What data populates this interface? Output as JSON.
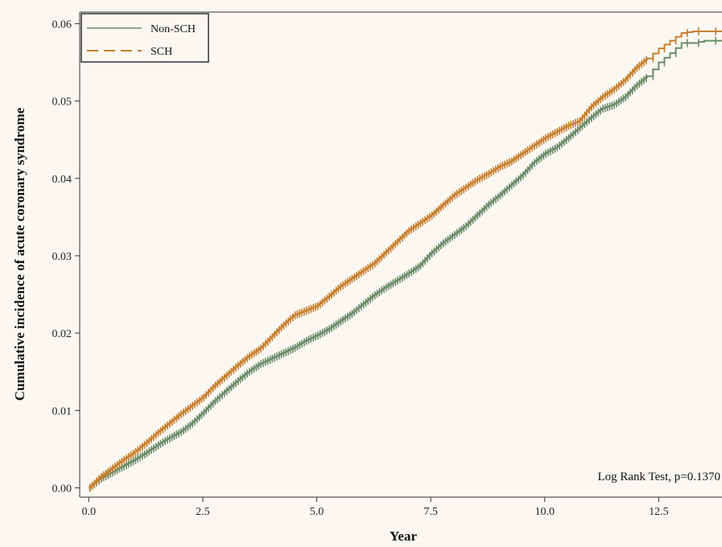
{
  "chart_data": {
    "type": "line",
    "xlabel": "Year",
    "ylabel": "Cumulative incidence of acute coronary syndrome",
    "xlim": [
      -0.2,
      14.1
    ],
    "ylim": [
      -0.0012,
      0.0615
    ],
    "xticks": [
      0.0,
      2.5,
      5.0,
      7.5,
      10.0,
      12.5
    ],
    "xtick_labels": [
      "0.0",
      "2.5",
      "5.0",
      "7.5",
      "10.0",
      "12.5"
    ],
    "yticks": [
      0.0,
      0.01,
      0.02,
      0.03,
      0.04,
      0.05,
      0.06
    ],
    "ytick_labels": [
      "0.00",
      "0.01",
      "0.02",
      "0.03",
      "0.04",
      "0.05",
      "0.06"
    ],
    "legend_position": "top-left",
    "annotation": "Log Rank Test, p=0.1370",
    "grid": false,
    "series": [
      {
        "name": "Non-SCH",
        "color": "#6b8c6b",
        "line_style": "solid",
        "x": [
          0.0,
          0.25,
          0.5,
          0.75,
          1.0,
          1.25,
          1.5,
          1.75,
          2.0,
          2.25,
          2.5,
          2.75,
          3.0,
          3.25,
          3.5,
          3.75,
          4.0,
          4.25,
          4.5,
          4.75,
          5.0,
          5.25,
          5.5,
          5.75,
          6.0,
          6.25,
          6.5,
          6.75,
          7.0,
          7.25,
          7.5,
          7.75,
          8.0,
          8.25,
          8.5,
          8.75,
          9.0,
          9.25,
          9.5,
          9.75,
          10.0,
          10.25,
          10.5,
          10.75,
          11.0,
          11.25,
          11.5,
          11.75,
          12.0,
          12.25,
          12.5,
          12.75,
          13.0,
          13.25,
          13.5,
          14.0
        ],
        "y": [
          0.0,
          0.0012,
          0.002,
          0.0028,
          0.0036,
          0.0045,
          0.0055,
          0.0064,
          0.0072,
          0.0083,
          0.0097,
          0.0112,
          0.0125,
          0.0138,
          0.015,
          0.016,
          0.0167,
          0.0174,
          0.0181,
          0.019,
          0.0197,
          0.0205,
          0.0215,
          0.0225,
          0.0237,
          0.0249,
          0.0259,
          0.0268,
          0.0277,
          0.0287,
          0.0303,
          0.0316,
          0.0327,
          0.0338,
          0.0352,
          0.0366,
          0.0378,
          0.0391,
          0.0404,
          0.042,
          0.0432,
          0.044,
          0.0452,
          0.0465,
          0.0478,
          0.049,
          0.0495,
          0.0505,
          0.052,
          0.0532,
          0.055,
          0.0562,
          0.0575,
          0.0575,
          0.0578,
          0.0578
        ]
      },
      {
        "name": "SCH",
        "color": "#c77f2e",
        "line_style": "dashed",
        "x": [
          0.0,
          0.25,
          0.5,
          0.75,
          1.0,
          1.25,
          1.5,
          1.75,
          2.0,
          2.25,
          2.5,
          2.75,
          3.0,
          3.25,
          3.5,
          3.75,
          4.0,
          4.25,
          4.5,
          4.75,
          5.0,
          5.25,
          5.5,
          5.75,
          6.0,
          6.25,
          6.5,
          6.75,
          7.0,
          7.25,
          7.5,
          7.75,
          8.0,
          8.25,
          8.5,
          8.75,
          9.0,
          9.25,
          9.5,
          9.75,
          10.0,
          10.25,
          10.5,
          10.75,
          11.0,
          11.25,
          11.5,
          11.75,
          12.0,
          12.25,
          12.5,
          12.75,
          13.0,
          13.25,
          13.5,
          14.0
        ],
        "y": [
          0.0,
          0.0014,
          0.0025,
          0.0036,
          0.0046,
          0.0058,
          0.0071,
          0.0083,
          0.0095,
          0.0106,
          0.0117,
          0.0132,
          0.0145,
          0.0158,
          0.017,
          0.018,
          0.0195,
          0.021,
          0.0223,
          0.0229,
          0.0235,
          0.0247,
          0.026,
          0.027,
          0.028,
          0.029,
          0.0304,
          0.0318,
          0.0332,
          0.0342,
          0.0352,
          0.0365,
          0.0378,
          0.0388,
          0.0398,
          0.0406,
          0.0415,
          0.0422,
          0.0432,
          0.0442,
          0.0452,
          0.046,
          0.0468,
          0.0474,
          0.0492,
          0.0505,
          0.0515,
          0.0527,
          0.0543,
          0.0555,
          0.0568,
          0.0578,
          0.0588,
          0.059,
          0.059,
          0.059
        ]
      }
    ]
  }
}
